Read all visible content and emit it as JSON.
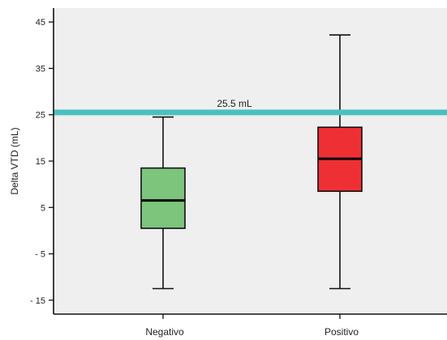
{
  "chart_data": {
    "type": "box",
    "ylabel": "Delta VTD (mL)",
    "xlabel": "",
    "ylim": [
      -18,
      48
    ],
    "yticks": [
      45,
      35,
      25,
      15,
      5,
      -5,
      -15
    ],
    "ytick_labels": [
      "45",
      "35",
      "25",
      "15",
      "5",
      "- 5",
      "- 15"
    ],
    "categories": [
      "Negativo",
      "Positivo"
    ],
    "boxes": [
      {
        "category": "Negativo",
        "whisker_low": -12.5,
        "q1": 0.5,
        "median": 6.5,
        "q3": 13.5,
        "whisker_high": 24.5,
        "color": "#7dc47d"
      },
      {
        "category": "Positivo",
        "whisker_low": -12.5,
        "q1": 8.5,
        "median": 15.5,
        "q3": 22.3,
        "whisker_high": 42.2,
        "color": "#ee3035"
      }
    ],
    "reference_line": {
      "value": 25.5,
      "label": "25.5 mL",
      "color": "#4cc0c0"
    },
    "plot_background": "#efefef",
    "grid": false,
    "legend": "none"
  }
}
